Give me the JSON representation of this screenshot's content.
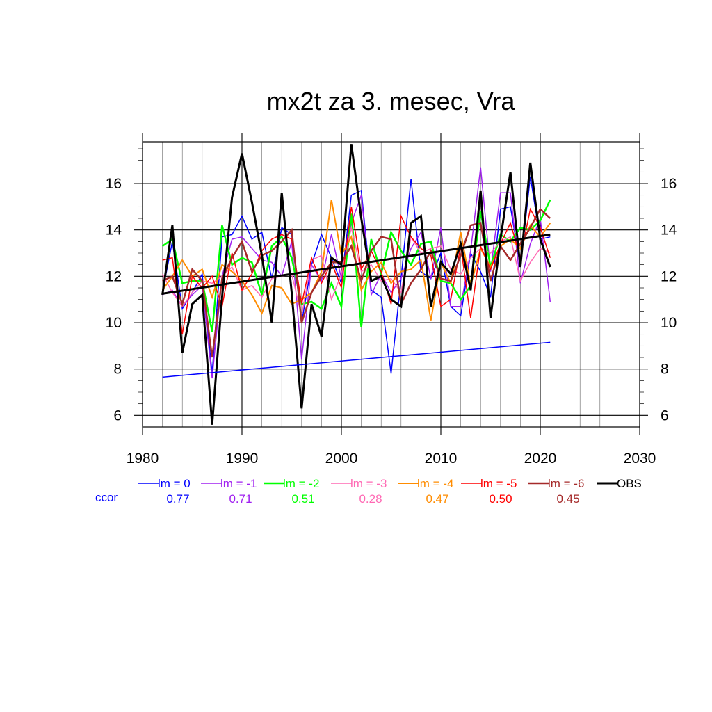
{
  "chart_data": {
    "type": "line",
    "title": "mx2t za 3. mesec, Vra",
    "xlabel": "",
    "ylabel": "",
    "xlim": [
      1980,
      2030
    ],
    "ylim": [
      5.5,
      17.8
    ],
    "x_ticks": [
      "1980",
      "1990",
      "2000",
      "2010",
      "2020",
      "2030"
    ],
    "y_ticks": [
      "6",
      "8",
      "10",
      "12",
      "14",
      "16"
    ],
    "grid": true,
    "x": [
      1982,
      1983,
      1984,
      1985,
      1986,
      1987,
      1988,
      1989,
      1990,
      1991,
      1992,
      1993,
      1994,
      1995,
      1996,
      1997,
      1998,
      1999,
      2000,
      2001,
      2002,
      2003,
      2004,
      2005,
      2006,
      2007,
      2008,
      2009,
      2010,
      2011,
      2012,
      2013,
      2014,
      2015,
      2016,
      2017,
      2018,
      2019,
      2020,
      2021
    ],
    "series": [
      {
        "name": "lm = 0",
        "color": "#0000ff",
        "width": 1.5,
        "values": [
          11.3,
          13.5,
          10.6,
          11.3,
          12.1,
          7.8,
          13.7,
          13.8,
          14.6,
          13.6,
          13.9,
          11.9,
          14.1,
          13.8,
          10.0,
          12.5,
          13.8,
          12.8,
          11.7,
          15.5,
          15.7,
          11.4,
          11.1,
          7.8,
          11.9,
          16.2,
          12.2,
          11.9,
          13.0,
          10.7,
          10.3,
          13.0,
          12.2,
          11.1,
          14.9,
          15.0,
          12.4,
          16.3,
          13.6,
          13.7
        ]
      },
      {
        "name": "lm = -1",
        "color": "#a020f0",
        "width": 1.5,
        "values": [
          11.2,
          11.4,
          10.7,
          11.2,
          11.6,
          7.6,
          12.0,
          13.6,
          13.7,
          13.2,
          12.7,
          12.6,
          12.0,
          13.5,
          8.4,
          12.5,
          11.8,
          13.8,
          11.9,
          14.3,
          15.5,
          11.2,
          12.1,
          11.3,
          11.9,
          13.2,
          13.9,
          11.9,
          14.1,
          10.7,
          10.7,
          13.1,
          16.7,
          12.2,
          15.6,
          15.6,
          11.7,
          13.4,
          14.5,
          10.9
        ]
      },
      {
        "name": "lm = -2",
        "color": "#00ff00",
        "width": 2.5,
        "values": [
          13.3,
          13.6,
          11.7,
          11.8,
          11.8,
          9.6,
          14.2,
          12.5,
          12.8,
          12.6,
          11.2,
          13.3,
          13.7,
          12.8,
          10.8,
          10.9,
          10.6,
          11.7,
          10.7,
          14.7,
          9.8,
          13.6,
          12.1,
          13.9,
          13.1,
          12.5,
          13.4,
          13.5,
          11.8,
          11.7,
          11.0,
          11.6,
          14.8,
          12.4,
          13.8,
          13.5,
          14.1,
          14.0,
          14.4,
          15.3
        ]
      },
      {
        "name": "lm = -3",
        "color": "#ff69b4",
        "width": 1.5,
        "values": [
          12.1,
          11.3,
          10.7,
          11.3,
          11.8,
          11.7,
          12.0,
          12.4,
          11.4,
          11.6,
          11.1,
          11.9,
          12.0,
          12.1,
          10.3,
          12.7,
          12.9,
          11.0,
          12.1,
          14.1,
          12.2,
          12.5,
          11.8,
          11.9,
          11.3,
          13.7,
          13.0,
          13.2,
          13.3,
          12.3,
          12.1,
          12.8,
          13.2,
          13.0,
          13.5,
          13.7,
          11.8,
          12.6,
          13.2,
          13.0
        ]
      },
      {
        "name": "lm = -4",
        "color": "#ff8c00",
        "width": 2.0,
        "values": [
          11.4,
          12.0,
          12.7,
          12.0,
          12.3,
          11.1,
          12.5,
          12.2,
          11.8,
          11.2,
          10.4,
          11.6,
          11.5,
          10.8,
          11.0,
          11.3,
          12.2,
          15.3,
          12.9,
          13.7,
          11.4,
          12.2,
          12.6,
          11.7,
          12.2,
          12.3,
          12.7,
          10.1,
          12.6,
          11.7,
          13.9,
          11.6,
          13.2,
          12.4,
          13.3,
          13.6,
          13.2,
          14.2,
          13.7,
          14.3
        ]
      },
      {
        "name": "lm = -5",
        "color": "#ff0000",
        "width": 1.5,
        "values": [
          12.7,
          12.8,
          9.5,
          12.0,
          11.5,
          12.0,
          10.7,
          13.0,
          11.4,
          12.1,
          13.1,
          13.6,
          13.8,
          13.6,
          10.8,
          12.8,
          11.7,
          12.6,
          11.5,
          15.0,
          12.3,
          13.1,
          12.2,
          10.8,
          14.6,
          13.7,
          13.2,
          12.9,
          10.7,
          11.0,
          13.3,
          10.2,
          13.3,
          12.3,
          13.4,
          14.3,
          12.8,
          14.9,
          14.1,
          12.8
        ]
      },
      {
        "name": "lm = -6",
        "color": "#a52a2a",
        "width": 2.5,
        "values": [
          11.8,
          12.0,
          10.8,
          12.3,
          11.8,
          8.5,
          11.9,
          12.8,
          13.5,
          12.2,
          12.9,
          13.1,
          13.5,
          14.0,
          10.0,
          11.3,
          12.0,
          12.6,
          12.6,
          13.3,
          11.8,
          13.1,
          13.7,
          13.6,
          10.8,
          11.7,
          12.3,
          13.1,
          11.9,
          11.8,
          12.9,
          14.2,
          14.3,
          11.8,
          13.3,
          12.7,
          13.4,
          14.1,
          14.9,
          14.5
        ]
      },
      {
        "name": "OBS",
        "color": "#000000",
        "width": 3.0,
        "values": [
          11.2,
          14.2,
          8.7,
          10.8,
          11.2,
          5.6,
          11.1,
          15.4,
          17.3,
          15.2,
          12.9,
          10.0,
          15.6,
          11.3,
          6.3,
          10.8,
          9.4,
          12.8,
          12.5,
          17.7,
          14.5,
          11.8,
          12.0,
          11.0,
          10.7,
          14.3,
          14.6,
          10.7,
          12.6,
          12.1,
          13.4,
          11.4,
          15.7,
          10.2,
          13.6,
          16.5,
          12.4,
          16.9,
          13.6,
          12.4
        ]
      }
    ],
    "trend_lines": [
      {
        "series": "lm = 0",
        "color": "#0000ff",
        "x": [
          1982,
          2021
        ],
        "y": [
          7.65,
          9.15
        ]
      },
      {
        "series": "OBS",
        "color": "#000000",
        "x": [
          1982,
          2021
        ],
        "y": [
          11.25,
          13.8
        ]
      }
    ],
    "legend": {
      "placement": "bottom",
      "row_label": "ccor",
      "row_label_color": "#0000ff",
      "ccor": [
        "0.77",
        "0.71",
        "0.51",
        "0.28",
        "0.47",
        "0.50",
        "0.45"
      ]
    }
  }
}
